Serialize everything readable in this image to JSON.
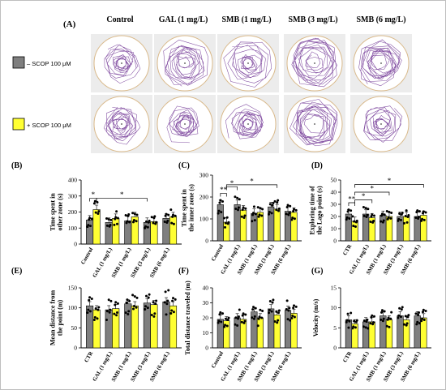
{
  "figure": {
    "panel_a_label": "(A)",
    "groups": [
      "Control",
      "GAL (1 mg/L)",
      "SMB (1 mg/L)",
      "SMB (3 mg/L)",
      "SMB (6 mg/L)"
    ],
    "legend": [
      {
        "label": "– SCOP 100 μM",
        "color": "#7f7f7f"
      },
      {
        "label": "+ SCOP 100 μM",
        "color": "#ffff33"
      }
    ]
  },
  "chart_data": [
    {
      "panel": "(B)",
      "type": "bar",
      "ylabel_lines": [
        "Time spent in",
        "other zone (s)"
      ],
      "ylim": [
        0,
        400
      ],
      "yticks": [
        0,
        100,
        200,
        300,
        400
      ],
      "categories": [
        "Control",
        "GAL (1 mg/L)",
        "SMB (1 mg/L)",
        "SMB (3 mg/L)",
        "SMB (6 mg/L)"
      ],
      "series": [
        {
          "name": "– SCOP 100 μM",
          "values": [
            150,
            135,
            145,
            135,
            160
          ]
        },
        {
          "name": "+ SCOP 100 μM",
          "values": [
            215,
            160,
            170,
            140,
            170
          ]
        }
      ],
      "annotations": [
        "*",
        "*"
      ]
    },
    {
      "panel": "(C)",
      "type": "bar",
      "ylabel_lines": [
        "Time spent in",
        "the inner zone (s)"
      ],
      "ylim": [
        0,
        300
      ],
      "yticks": [
        0,
        100,
        200,
        300
      ],
      "categories": [
        "Control",
        "GAL (1 mg/L)",
        "SMB (1 mg/L)",
        "SMB (3 mg/L)",
        "SMB (6 mg/L)"
      ],
      "series": [
        {
          "name": "– SCOP 100 μM",
          "values": [
            165,
            165,
            125,
            155,
            135
          ]
        },
        {
          "name": "+ SCOP 100 μM",
          "values": [
            85,
            140,
            130,
            145,
            130
          ]
        }
      ],
      "annotations": [
        "**",
        "*",
        "*"
      ]
    },
    {
      "panel": "(D)",
      "type": "bar",
      "ylabel_lines": [
        "Exploring time of",
        "the Lago point (s)"
      ],
      "ylim": [
        0,
        50
      ],
      "yticks": [
        0,
        10,
        20,
        30,
        40,
        50
      ],
      "categories": [
        "CTR",
        "GAL (1 mg/L)",
        "SMB (1 mg/L)",
        "SMB (3 mg/L)",
        "SMB (6 mg/L)"
      ],
      "series": [
        {
          "name": "– SCOP 100 μM",
          "values": [
            22,
            22,
            21,
            20,
            20
          ]
        },
        {
          "name": "+ SCOP 100 μM",
          "values": [
            16,
            19,
            20,
            20,
            21
          ]
        }
      ],
      "annotations": [
        "**",
        "*",
        "*",
        "*"
      ]
    },
    {
      "panel": "(E)",
      "type": "bar",
      "ylabel_lines": [
        "Mean distance from",
        "the point (m)"
      ],
      "ylim": [
        0,
        150
      ],
      "yticks": [
        0,
        50,
        100,
        150
      ],
      "categories": [
        "CTR",
        "GAL (1 mg/L)",
        "SMB (1 mg/L)",
        "SMB (3 mg/L)",
        "SMB (6 mg/L)"
      ],
      "series": [
        {
          "name": "– SCOP 100 μM",
          "values": [
            105,
            95,
            110,
            112,
            115
          ]
        },
        {
          "name": "+ SCOP 100 μM",
          "values": [
            95,
            98,
            105,
            108,
            105
          ]
        }
      ],
      "annotations": []
    },
    {
      "panel": "(F)",
      "type": "bar",
      "ylabel_lines": [
        "Total distance traveled (m)"
      ],
      "ylim": [
        0,
        40
      ],
      "yticks": [
        0,
        10,
        20,
        30,
        40
      ],
      "categories": [
        "Control",
        "GAL (1 mg/L)",
        "SMB (1 mg/L)",
        "SMB (3 mg/L)",
        "SMB (6 mg/L)"
      ],
      "series": [
        {
          "name": "– SCOP 100 μM",
          "values": [
            19,
            20,
            24,
            26,
            25
          ]
        },
        {
          "name": "+ SCOP 100 μM",
          "values": [
            18,
            19,
            20,
            22,
            23
          ]
        }
      ],
      "annotations": []
    },
    {
      "panel": "(G)",
      "type": "bar",
      "ylabel_lines": [
        "Velocity (m/s)"
      ],
      "ylim": [
        0,
        15
      ],
      "yticks": [
        0,
        5,
        10,
        15
      ],
      "categories": [
        "CTR",
        "GAL (1 mg/L)",
        "SMB (1 mg/L)",
        "SMB (3 mg/L)",
        "SMB (6 mg/L)"
      ],
      "series": [
        {
          "name": "– SCOP 100 μM",
          "values": [
            7,
            6.5,
            8,
            8,
            8
          ]
        },
        {
          "name": "+ SCOP 100 μM",
          "values": [
            6,
            6.5,
            7,
            7,
            7.5
          ]
        }
      ],
      "annotations": []
    }
  ]
}
